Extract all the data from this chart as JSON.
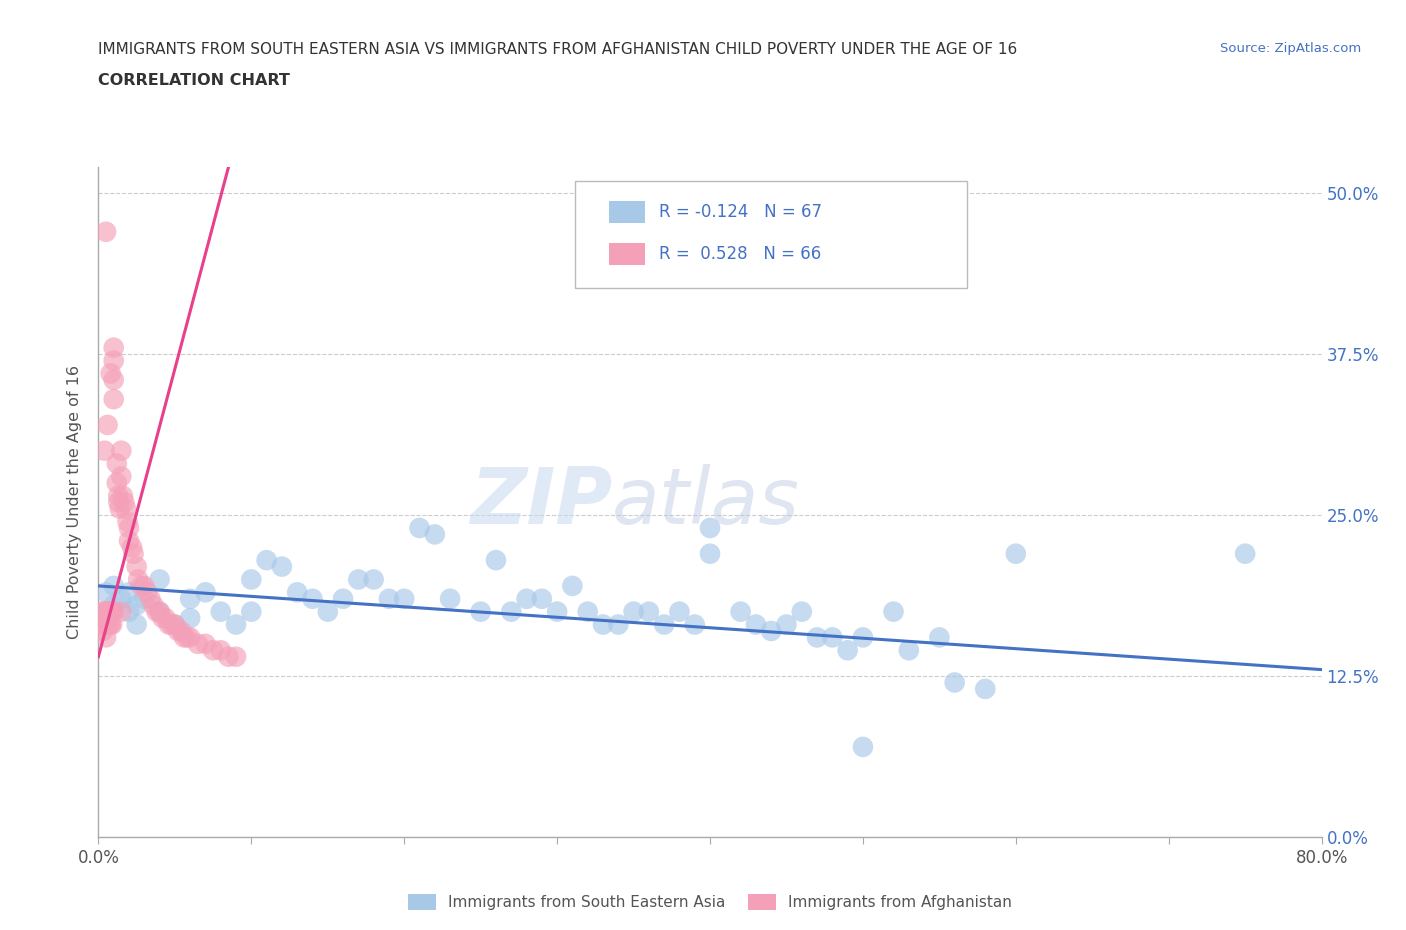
{
  "title_line1": "IMMIGRANTS FROM SOUTH EASTERN ASIA VS IMMIGRANTS FROM AFGHANISTAN CHILD POVERTY UNDER THE AGE OF 16",
  "title_line2": "CORRELATION CHART",
  "source_text": "Source: ZipAtlas.com",
  "ylabel": "Child Poverty Under the Age of 16",
  "legend_label1": "Immigrants from South Eastern Asia",
  "legend_label2": "Immigrants from Afghanistan",
  "R1": -0.124,
  "N1": 67,
  "R2": 0.528,
  "N2": 66,
  "color_blue": "#a8c8e8",
  "color_pink": "#f4a0b8",
  "color_blue_line": "#4472C4",
  "color_pink_line": "#e8408a",
  "watermark_zip": "ZIP",
  "watermark_atlas": "atlas",
  "blue_scatter_x": [
    0.005,
    0.008,
    0.01,
    0.01,
    0.015,
    0.02,
    0.02,
    0.025,
    0.025,
    0.03,
    0.04,
    0.04,
    0.05,
    0.06,
    0.06,
    0.07,
    0.08,
    0.09,
    0.1,
    0.1,
    0.11,
    0.12,
    0.13,
    0.14,
    0.15,
    0.16,
    0.17,
    0.18,
    0.19,
    0.2,
    0.21,
    0.22,
    0.23,
    0.25,
    0.26,
    0.27,
    0.28,
    0.29,
    0.3,
    0.31,
    0.32,
    0.33,
    0.34,
    0.35,
    0.36,
    0.37,
    0.38,
    0.39,
    0.4,
    0.4,
    0.42,
    0.43,
    0.44,
    0.45,
    0.46,
    0.47,
    0.48,
    0.49,
    0.5,
    0.52,
    0.53,
    0.55,
    0.56,
    0.58,
    0.6,
    0.75,
    0.5
  ],
  "blue_scatter_y": [
    0.19,
    0.175,
    0.195,
    0.18,
    0.185,
    0.19,
    0.175,
    0.18,
    0.165,
    0.185,
    0.2,
    0.175,
    0.165,
    0.185,
    0.17,
    0.19,
    0.175,
    0.165,
    0.2,
    0.175,
    0.215,
    0.21,
    0.19,
    0.185,
    0.175,
    0.185,
    0.2,
    0.2,
    0.185,
    0.185,
    0.24,
    0.235,
    0.185,
    0.175,
    0.215,
    0.175,
    0.185,
    0.185,
    0.175,
    0.195,
    0.175,
    0.165,
    0.165,
    0.175,
    0.175,
    0.165,
    0.175,
    0.165,
    0.24,
    0.22,
    0.175,
    0.165,
    0.16,
    0.165,
    0.175,
    0.155,
    0.155,
    0.145,
    0.155,
    0.175,
    0.145,
    0.155,
    0.12,
    0.115,
    0.22,
    0.22,
    0.07
  ],
  "pink_scatter_x": [
    0.002,
    0.003,
    0.004,
    0.004,
    0.005,
    0.005,
    0.005,
    0.006,
    0.006,
    0.007,
    0.007,
    0.008,
    0.008,
    0.009,
    0.009,
    0.01,
    0.01,
    0.01,
    0.012,
    0.012,
    0.013,
    0.013,
    0.014,
    0.015,
    0.015,
    0.016,
    0.017,
    0.018,
    0.019,
    0.02,
    0.02,
    0.022,
    0.023,
    0.025,
    0.026,
    0.028,
    0.03,
    0.032,
    0.034,
    0.036,
    0.038,
    0.04,
    0.042,
    0.044,
    0.046,
    0.048,
    0.05,
    0.052,
    0.054,
    0.056,
    0.058,
    0.06,
    0.065,
    0.07,
    0.075,
    0.08,
    0.085,
    0.09,
    0.01,
    0.008,
    0.006,
    0.004,
    0.002,
    0.005,
    0.01,
    0.015
  ],
  "pink_scatter_y": [
    0.165,
    0.16,
    0.175,
    0.165,
    0.47,
    0.155,
    0.165,
    0.175,
    0.165,
    0.175,
    0.165,
    0.175,
    0.165,
    0.175,
    0.165,
    0.37,
    0.355,
    0.34,
    0.29,
    0.275,
    0.265,
    0.26,
    0.255,
    0.3,
    0.28,
    0.265,
    0.26,
    0.255,
    0.245,
    0.24,
    0.23,
    0.225,
    0.22,
    0.21,
    0.2,
    0.195,
    0.195,
    0.19,
    0.185,
    0.18,
    0.175,
    0.175,
    0.17,
    0.17,
    0.165,
    0.165,
    0.165,
    0.16,
    0.16,
    0.155,
    0.155,
    0.155,
    0.15,
    0.15,
    0.145,
    0.145,
    0.14,
    0.14,
    0.38,
    0.36,
    0.32,
    0.3,
    0.175,
    0.175,
    0.175,
    0.175
  ],
  "xlim": [
    0.0,
    0.8
  ],
  "ylim": [
    0.0,
    0.52
  ],
  "yticks": [
    0.0,
    0.125,
    0.25,
    0.375,
    0.5
  ],
  "blue_trend_start_x": 0.0,
  "blue_trend_start_y": 0.195,
  "blue_trend_end_x": 0.8,
  "blue_trend_end_y": 0.13,
  "pink_trend_start_x": 0.0,
  "pink_trend_start_y": 0.14,
  "pink_trend_end_x": 0.085,
  "pink_trend_end_y": 0.52
}
